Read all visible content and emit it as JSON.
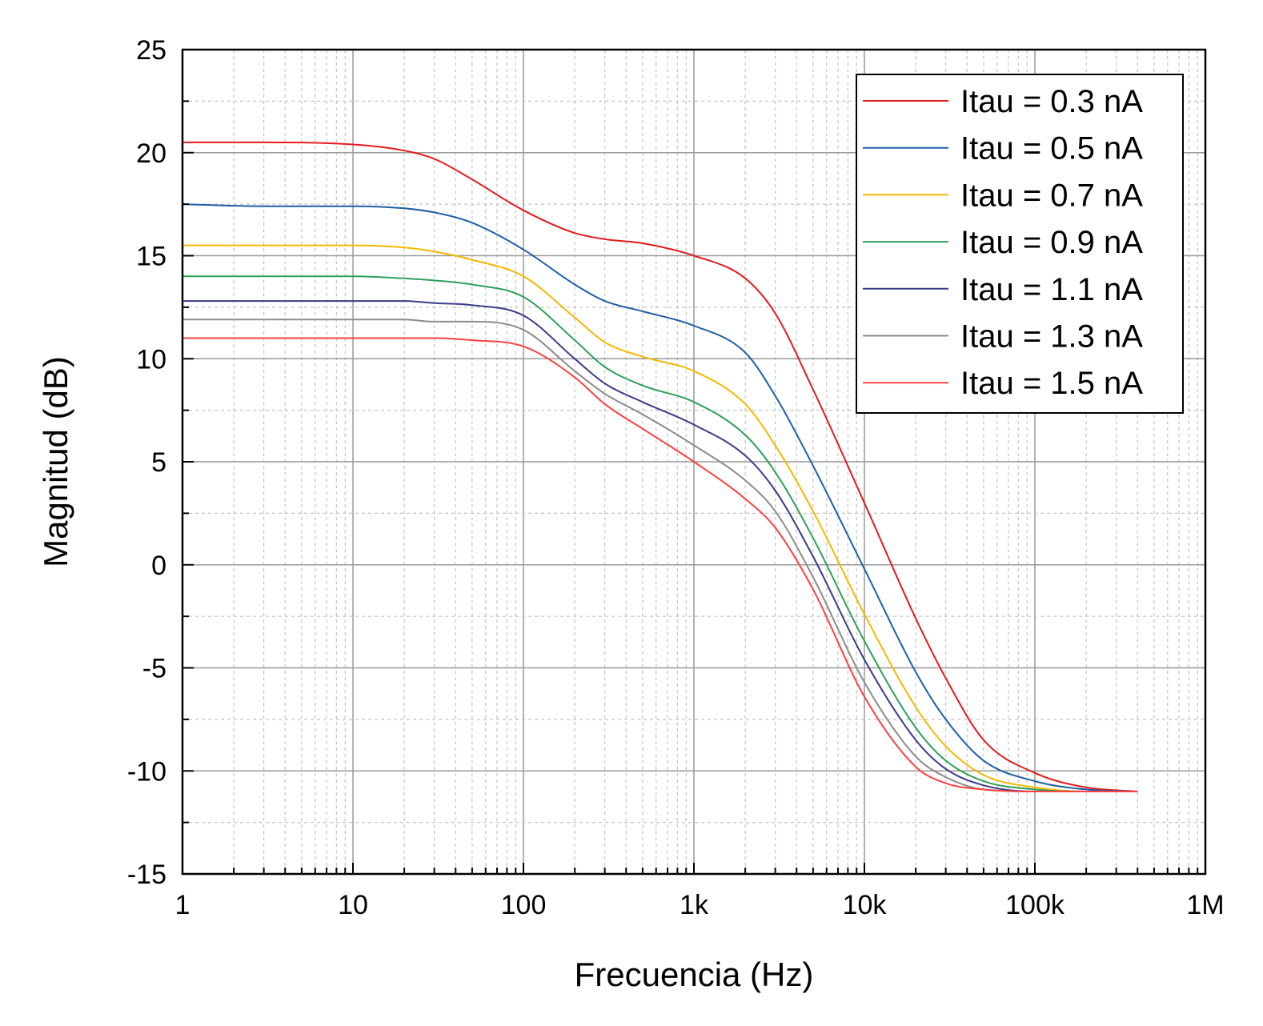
{
  "chart_data": {
    "type": "line",
    "title": "",
    "xlabel": "Frecuencia (Hz)",
    "ylabel": "Magnitud (dB)",
    "x_scale": "log",
    "xlim": [
      1,
      1000000
    ],
    "ylim": [
      -15,
      25
    ],
    "x_ticks": [
      {
        "value": 1,
        "label": "1"
      },
      {
        "value": 10,
        "label": "10"
      },
      {
        "value": 100,
        "label": "100"
      },
      {
        "value": 1000,
        "label": "1k"
      },
      {
        "value": 10000,
        "label": "10k"
      },
      {
        "value": 100000,
        "label": "100k"
      },
      {
        "value": 1000000,
        "label": "1M"
      }
    ],
    "y_ticks": [
      {
        "value": 25,
        "label": "25"
      },
      {
        "value": 20,
        "label": "20"
      },
      {
        "value": 15,
        "label": "15"
      },
      {
        "value": 10,
        "label": "10"
      },
      {
        "value": 5,
        "label": "5"
      },
      {
        "value": 0,
        "label": "0"
      },
      {
        "value": -5,
        "label": "-5"
      },
      {
        "value": -10,
        "label": "-10"
      },
      {
        "value": -15,
        "label": "-15"
      }
    ],
    "grid": true,
    "legend_position": "top-right",
    "x": [
      1,
      3,
      10,
      20,
      30,
      50,
      100,
      200,
      300,
      500,
      1000,
      2000,
      3000,
      5000,
      10000,
      20000,
      30000,
      50000,
      100000,
      200000,
      400000
    ],
    "series": [
      {
        "name": "Itau = 0.3 nA",
        "color": "#e41a1c",
        "values": [
          20.5,
          20.5,
          20.4,
          20.1,
          19.7,
          18.7,
          17.2,
          16.1,
          15.8,
          15.6,
          15.0,
          13.9,
          12.2,
          8.5,
          3.0,
          -2.6,
          -5.5,
          -8.5,
          -10.1,
          -10.8,
          -11.0
        ]
      },
      {
        "name": "Itau = 0.5 nA",
        "color": "#1f5fa8",
        "values": [
          17.5,
          17.4,
          17.4,
          17.3,
          17.1,
          16.6,
          15.3,
          13.6,
          12.8,
          12.3,
          11.6,
          10.3,
          8.2,
          4.8,
          -0.2,
          -5.2,
          -7.5,
          -9.5,
          -10.5,
          -10.9,
          -11.0
        ]
      },
      {
        "name": "Itau = 0.7 nA",
        "color": "#f5b800",
        "values": [
          15.5,
          15.5,
          15.5,
          15.4,
          15.2,
          14.8,
          14.0,
          12.0,
          10.8,
          10.1,
          9.4,
          7.8,
          5.8,
          2.6,
          -2.4,
          -6.9,
          -8.8,
          -10.2,
          -10.8,
          -11.0,
          -11.0
        ]
      },
      {
        "name": "Itau = 0.9 nA",
        "color": "#2ca05a",
        "values": [
          14.0,
          14.0,
          14.0,
          13.9,
          13.8,
          13.6,
          13.0,
          10.9,
          9.6,
          8.7,
          7.9,
          6.3,
          4.5,
          1.3,
          -3.7,
          -7.9,
          -9.5,
          -10.5,
          -10.9,
          -11.0,
          -11.0
        ]
      },
      {
        "name": "Itau = 1.1 nA",
        "color": "#3a3a8c",
        "values": [
          12.8,
          12.8,
          12.8,
          12.8,
          12.7,
          12.6,
          12.1,
          10.0,
          8.8,
          7.9,
          6.8,
          5.3,
          3.6,
          0.4,
          -4.6,
          -8.5,
          -9.9,
          -10.7,
          -11.0,
          -11.0,
          -11.0
        ]
      },
      {
        "name": "Itau = 1.3 nA",
        "color": "#8c8c8c",
        "values": [
          11.9,
          11.9,
          11.9,
          11.9,
          11.8,
          11.8,
          11.4,
          9.4,
          8.3,
          7.3,
          5.8,
          4.1,
          2.6,
          -0.6,
          -5.7,
          -9.3,
          -10.3,
          -10.9,
          -11.0,
          -11.0,
          -11.0
        ]
      },
      {
        "name": "Itau = 1.5 nA",
        "color": "#ff4040",
        "values": [
          11.0,
          11.0,
          11.0,
          11.0,
          11.0,
          10.9,
          10.6,
          9.1,
          7.8,
          6.6,
          5.0,
          3.2,
          1.8,
          -1.2,
          -6.4,
          -9.8,
          -10.6,
          -10.9,
          -11.0,
          -11.0,
          -11.0
        ]
      }
    ]
  }
}
